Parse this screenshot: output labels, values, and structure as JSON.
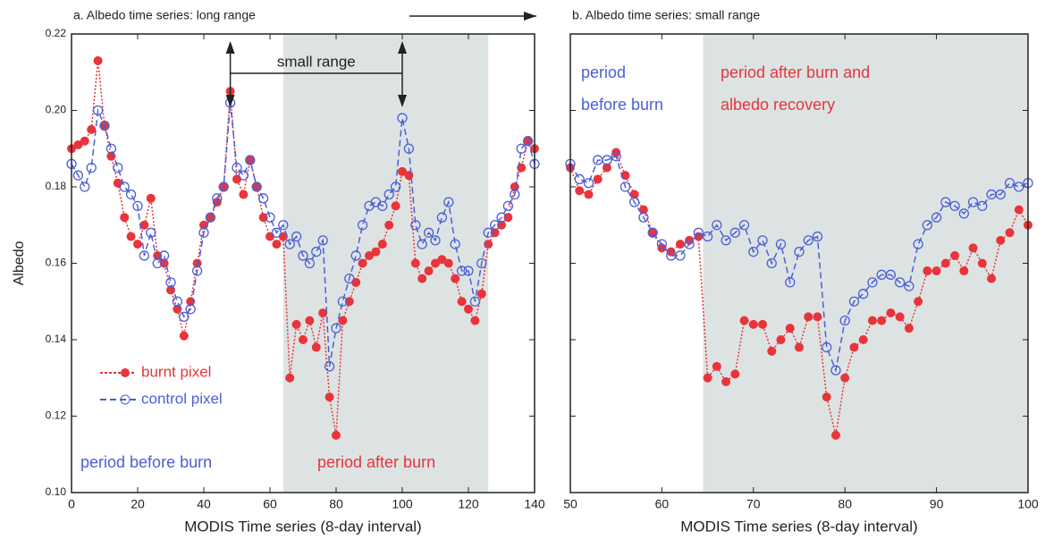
{
  "chart_data": [
    {
      "type": "line",
      "title": "a. Albedo time series: long range",
      "x_label": "MODIS Time series (8-day interval)",
      "y_label": "Albedo",
      "xlim": [
        0,
        140
      ],
      "xticks": [
        0,
        20,
        40,
        60,
        80,
        100,
        120,
        140
      ],
      "ylim": [
        0.1,
        0.22
      ],
      "yticks": [
        {
          "value": 0.1,
          "label": "0.10"
        },
        0.12,
        0.14,
        0.16,
        0.18,
        {
          "value": 0.2,
          "label": "0.20"
        },
        0.22
      ],
      "shaded_x": [
        64,
        126
      ],
      "shade_color": "#dde3e3",
      "range_marker": {
        "label": "small range",
        "x": [
          48,
          100
        ]
      },
      "annotations": [
        {
          "text": "period before burn",
          "color": "#4b5fd6"
        },
        {
          "text": "period after burn",
          "color": "#e8343a"
        }
      ],
      "x": [
        0,
        2,
        4,
        6,
        8,
        10,
        12,
        14,
        16,
        18,
        20,
        22,
        24,
        26,
        28,
        30,
        32,
        34,
        36,
        38,
        40,
        42,
        44,
        46,
        48,
        50,
        52,
        54,
        56,
        58,
        60,
        62,
        64,
        66,
        68,
        70,
        72,
        74,
        76,
        78,
        80,
        82,
        84,
        86,
        88,
        90,
        92,
        94,
        96,
        98,
        100,
        102,
        104,
        106,
        108,
        110,
        112,
        114,
        116,
        118,
        120,
        122,
        124,
        126,
        128,
        130,
        132,
        134,
        136,
        138,
        140
      ],
      "series": [
        {
          "name": "burnt pixel",
          "color": "#e8343a",
          "values": [
            0.19,
            0.191,
            0.192,
            0.195,
            0.213,
            0.196,
            0.188,
            0.181,
            0.172,
            0.167,
            0.165,
            0.17,
            0.177,
            0.162,
            0.16,
            0.153,
            0.148,
            0.141,
            0.15,
            0.16,
            0.17,
            0.172,
            0.176,
            0.18,
            0.205,
            0.182,
            0.178,
            0.187,
            0.18,
            0.172,
            0.167,
            0.165,
            0.167,
            0.13,
            0.144,
            0.14,
            0.145,
            0.138,
            0.147,
            0.125,
            0.115,
            0.145,
            0.15,
            0.155,
            0.16,
            0.162,
            0.163,
            0.165,
            0.17,
            0.175,
            0.184,
            0.183,
            0.16,
            0.156,
            0.158,
            0.16,
            0.161,
            0.16,
            0.156,
            0.15,
            0.148,
            0.145,
            0.152,
            0.165,
            0.168,
            0.17,
            0.172,
            0.18,
            0.185,
            0.192,
            0.19
          ]
        },
        {
          "name": "control pixel",
          "color": "#4b5fd6",
          "values": [
            0.186,
            0.183,
            0.18,
            0.185,
            0.2,
            0.196,
            0.19,
            0.185,
            0.18,
            0.178,
            0.175,
            0.162,
            0.168,
            0.16,
            0.162,
            0.155,
            0.15,
            0.146,
            0.148,
            0.158,
            0.168,
            0.172,
            0.177,
            0.18,
            0.202,
            0.185,
            0.183,
            0.187,
            0.18,
            0.177,
            0.172,
            0.168,
            0.17,
            0.165,
            0.167,
            0.162,
            0.16,
            0.163,
            0.166,
            0.133,
            0.143,
            0.15,
            0.156,
            0.162,
            0.17,
            0.175,
            0.176,
            0.175,
            0.178,
            0.18,
            0.198,
            0.19,
            0.17,
            0.165,
            0.168,
            0.166,
            0.172,
            0.176,
            0.165,
            0.158,
            0.158,
            0.15,
            0.16,
            0.168,
            0.17,
            0.172,
            0.175,
            0.178,
            0.19,
            0.192,
            0.186
          ]
        }
      ]
    },
    {
      "type": "line",
      "title": "b. Albedo time series: small range",
      "x_label": "MODIS Time series (8-day interval)",
      "xlim": [
        50,
        100
      ],
      "xticks": [
        50,
        60,
        70,
        80,
        90,
        100
      ],
      "ylim": [
        0.1,
        0.22
      ],
      "yticks": [
        0.1,
        0.12,
        0.14,
        0.16,
        0.18,
        0.2,
        0.22
      ],
      "shaded_x": [
        64.5,
        100
      ],
      "shade_color": "#dde3e3",
      "annotations": [
        {
          "text": "period",
          "color": "#4b5fd6"
        },
        {
          "text": "before burn",
          "color": "#4b5fd6"
        },
        {
          "text": "period after burn and",
          "color": "#e8343a"
        },
        {
          "text": "albedo recovery",
          "color": "#e8343a"
        }
      ],
      "x": [
        50,
        51,
        52,
        53,
        54,
        55,
        56,
        57,
        58,
        59,
        60,
        61,
        62,
        63,
        64,
        65,
        66,
        67,
        68,
        69,
        70,
        71,
        72,
        73,
        74,
        75,
        76,
        77,
        78,
        79,
        80,
        81,
        82,
        83,
        84,
        85,
        86,
        87,
        88,
        89,
        90,
        91,
        92,
        93,
        94,
        95,
        96,
        97,
        98,
        99,
        100
      ],
      "series": [
        {
          "color": "#e8343a",
          "values": [
            0.185,
            0.179,
            0.178,
            0.182,
            0.185,
            0.189,
            0.183,
            0.178,
            0.174,
            0.168,
            0.164,
            0.163,
            0.165,
            0.166,
            0.167,
            0.13,
            0.133,
            0.129,
            0.131,
            0.145,
            0.144,
            0.144,
            0.137,
            0.14,
            0.143,
            0.138,
            0.146,
            0.146,
            0.125,
            0.115,
            0.13,
            0.138,
            0.14,
            0.145,
            0.145,
            0.147,
            0.146,
            0.143,
            0.15,
            0.158,
            0.158,
            0.16,
            0.162,
            0.158,
            0.164,
            0.16,
            0.156,
            0.166,
            0.168,
            0.174,
            0.17
          ]
        },
        {
          "color": "#4b5fd6",
          "values": [
            0.186,
            0.182,
            0.181,
            0.187,
            0.187,
            0.188,
            0.18,
            0.176,
            0.172,
            0.168,
            0.165,
            0.162,
            0.162,
            0.165,
            0.168,
            0.167,
            0.17,
            0.166,
            0.168,
            0.17,
            0.163,
            0.166,
            0.16,
            0.165,
            0.155,
            0.163,
            0.166,
            0.167,
            0.138,
            0.132,
            0.145,
            0.15,
            0.152,
            0.155,
            0.157,
            0.157,
            0.155,
            0.154,
            0.165,
            0.17,
            0.172,
            0.176,
            0.175,
            0.173,
            0.176,
            0.175,
            0.178,
            0.178,
            0.181,
            0.18,
            0.181
          ]
        }
      ]
    }
  ]
}
